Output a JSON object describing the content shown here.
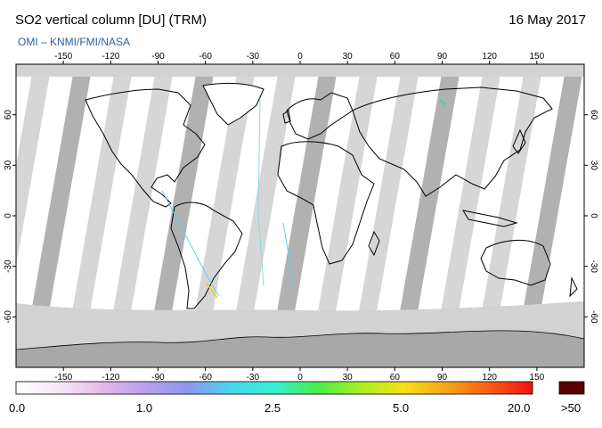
{
  "header": {
    "title": "SO2 vertical column [DU] (TRM)",
    "date": "16 May 2017",
    "subtitle": "OMI  –  KNMI/FMI/NASA"
  },
  "map": {
    "lon_ticks": [
      "-150",
      "-120",
      "-90",
      "-60",
      "-30",
      "0",
      "30",
      "60",
      "90",
      "120",
      "150"
    ],
    "lat_ticks": [
      "60",
      "30",
      "0",
      "-30",
      "-60"
    ],
    "colors": {
      "no_data": "#d2d2d2",
      "overlap": "#a9a9a9",
      "antarctica": "#a8a8a8",
      "coast": "#000000"
    }
  },
  "colorbar": {
    "labels": [
      "0.0",
      "1.0",
      "2.5",
      "5.0",
      "20.0"
    ],
    "over_label": ">50",
    "stops": [
      "#ffffff",
      "#f6e8f6",
      "#e8b8e8",
      "#b8a0ee",
      "#8d96f0",
      "#4ad6f0",
      "#34f0d2",
      "#48ee48",
      "#a8f020",
      "#f6e018",
      "#f8a418",
      "#f85c18",
      "#f01010"
    ],
    "over_color": "#5a0000"
  }
}
